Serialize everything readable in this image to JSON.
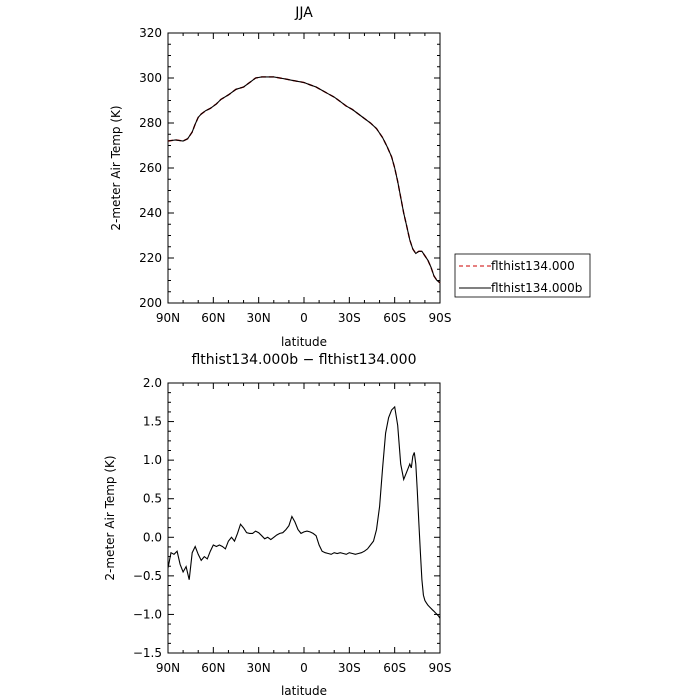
{
  "chart_data": [
    {
      "type": "line",
      "title": "JJA",
      "xlabel": "latitude",
      "ylabel": "2-meter Air Temp (K)",
      "xlim": [
        90,
        -90
      ],
      "ylim": [
        200,
        320
      ],
      "x_ticks": [
        90,
        60,
        30,
        0,
        -30,
        -60,
        -90
      ],
      "x_tick_labels": [
        "90N",
        "60N",
        "30N",
        "0",
        "30S",
        "60S",
        "90S"
      ],
      "y_ticks": [
        200,
        220,
        240,
        260,
        280,
        300,
        320
      ],
      "y_tick_labels": [
        "200",
        "220",
        "240",
        "260",
        "280",
        "300",
        "320"
      ],
      "legend": {
        "position": "right-bottom-outside",
        "entries": [
          {
            "label": "flthist134.000",
            "color": "#cc0000",
            "dash": "dashed"
          },
          {
            "label": "flthist134.000b",
            "color": "#000000",
            "dash": "solid"
          }
        ]
      },
      "series": [
        {
          "name": "flthist134.000",
          "color": "#cc0000",
          "dash": "dashed",
          "x": [
            90,
            85,
            80,
            77,
            74,
            72,
            70,
            68,
            65,
            62,
            58,
            55,
            50,
            45,
            40,
            35,
            32,
            28,
            24,
            20,
            16,
            12,
            8,
            4,
            0,
            -4,
            -8,
            -12,
            -16,
            -20,
            -24,
            -28,
            -32,
            -36,
            -40,
            -44,
            -48,
            -52,
            -55,
            -58,
            -60,
            -62,
            -64,
            -66,
            -68,
            -70,
            -72,
            -74,
            -76,
            -78,
            -80,
            -82,
            -84,
            -86,
            -88,
            -90
          ],
          "y": [
            272,
            272.5,
            272,
            273,
            276,
            279.5,
            282.5,
            284,
            285.5,
            286.5,
            288.5,
            290.5,
            292.5,
            295,
            296,
            298.5,
            300,
            300.5,
            300.5,
            300.5,
            300,
            299.5,
            299,
            298.5,
            298,
            297,
            296,
            294.5,
            293,
            291.5,
            289.5,
            287.5,
            286,
            284,
            282,
            280,
            277.5,
            273.5,
            269.5,
            265,
            260,
            254,
            247,
            240,
            234,
            228,
            224,
            222,
            223,
            223,
            221,
            219,
            216,
            212,
            210,
            209
          ]
        },
        {
          "name": "flthist134.000b",
          "color": "#000000",
          "dash": "solid",
          "x": [
            90,
            85,
            80,
            77,
            74,
            72,
            70,
            68,
            65,
            62,
            58,
            55,
            50,
            45,
            40,
            35,
            32,
            28,
            24,
            20,
            16,
            12,
            8,
            4,
            0,
            -4,
            -8,
            -12,
            -16,
            -20,
            -24,
            -28,
            -32,
            -36,
            -40,
            -44,
            -48,
            -52,
            -55,
            -58,
            -60,
            -62,
            -64,
            -66,
            -68,
            -70,
            -72,
            -74,
            -76,
            -78,
            -80,
            -82,
            -84,
            -86,
            -88,
            -90
          ],
          "y": [
            272,
            272.5,
            272,
            273,
            276,
            279.5,
            282.5,
            284,
            285.5,
            286.5,
            288.5,
            290.5,
            292.5,
            295,
            296,
            298.5,
            300,
            300.5,
            300.5,
            300.5,
            300,
            299.5,
            299,
            298.5,
            298,
            297,
            296,
            294.5,
            293,
            291.5,
            289.5,
            287.5,
            286,
            284,
            282,
            280,
            277.5,
            273.5,
            269.5,
            265,
            260,
            254,
            247,
            240,
            234,
            228,
            224,
            222,
            223,
            223,
            221,
            219,
            216,
            212,
            210,
            209
          ]
        }
      ]
    },
    {
      "type": "line",
      "title": "flthist134.000b − flthist134.000",
      "xlabel": "latitude",
      "ylabel": "2-meter Air Temp (K)",
      "xlim": [
        90,
        -90
      ],
      "ylim": [
        -1.5,
        2.0
      ],
      "x_ticks": [
        90,
        60,
        30,
        0,
        -30,
        -60,
        -90
      ],
      "x_tick_labels": [
        "90N",
        "60N",
        "30N",
        "0",
        "30S",
        "60S",
        "90S"
      ],
      "y_ticks": [
        -1.5,
        -1.0,
        -0.5,
        0.0,
        0.5,
        1.0,
        1.5,
        2.0
      ],
      "y_tick_labels": [
        "−1.5",
        "−1.0",
        "−0.5",
        "0.0",
        "0.5",
        "1.0",
        "1.5",
        "2.0"
      ],
      "series": [
        {
          "color": "#000000",
          "dash": "solid",
          "x": [
            90,
            88,
            86,
            84,
            82,
            80,
            78,
            76,
            74,
            72,
            70,
            68,
            66,
            64,
            62,
            60,
            58,
            56,
            54,
            52,
            50,
            48,
            46,
            44,
            42,
            40,
            38,
            36,
            34,
            32,
            30,
            28,
            26,
            24,
            22,
            20,
            18,
            16,
            14,
            12,
            10,
            8,
            6,
            4,
            2,
            0,
            -2,
            -4,
            -6,
            -8,
            -10,
            -12,
            -14,
            -16,
            -18,
            -20,
            -22,
            -24,
            -26,
            -28,
            -30,
            -32,
            -34,
            -36,
            -38,
            -40,
            -42,
            -44,
            -46,
            -48,
            -50,
            -52,
            -54,
            -56,
            -58,
            -60,
            -62,
            -64,
            -66,
            -68,
            -70,
            -71,
            -72,
            -73,
            -74,
            -75,
            -76,
            -77,
            -78,
            -79,
            -80,
            -81,
            -82,
            -83,
            -84,
            -85,
            -86,
            -87,
            -88,
            -89,
            -90
          ],
          "y": [
            -0.4,
            -0.2,
            -0.22,
            -0.18,
            -0.35,
            -0.45,
            -0.38,
            -0.55,
            -0.2,
            -0.12,
            -0.22,
            -0.3,
            -0.25,
            -0.28,
            -0.18,
            -0.1,
            -0.12,
            -0.1,
            -0.12,
            -0.15,
            -0.05,
            0.0,
            -0.05,
            0.05,
            0.17,
            0.12,
            0.06,
            0.05,
            0.05,
            0.08,
            0.06,
            0.02,
            -0.02,
            0.0,
            -0.03,
            0.0,
            0.03,
            0.05,
            0.06,
            0.1,
            0.15,
            0.27,
            0.2,
            0.1,
            0.05,
            0.07,
            0.08,
            0.07,
            0.05,
            0.02,
            -0.1,
            -0.18,
            -0.2,
            -0.21,
            -0.22,
            -0.2,
            -0.21,
            -0.2,
            -0.21,
            -0.22,
            -0.2,
            -0.21,
            -0.22,
            -0.21,
            -0.2,
            -0.18,
            -0.15,
            -0.1,
            -0.05,
            0.1,
            0.4,
            0.9,
            1.35,
            1.55,
            1.65,
            1.69,
            1.45,
            0.95,
            0.75,
            0.85,
            0.95,
            0.9,
            1.05,
            1.1,
            0.95,
            0.6,
            0.2,
            -0.2,
            -0.55,
            -0.75,
            -0.82,
            -0.85,
            -0.88,
            -0.9,
            -0.92,
            -0.94,
            -0.96,
            -0.98,
            -1.0,
            -1.02,
            -1.05
          ]
        }
      ]
    }
  ]
}
